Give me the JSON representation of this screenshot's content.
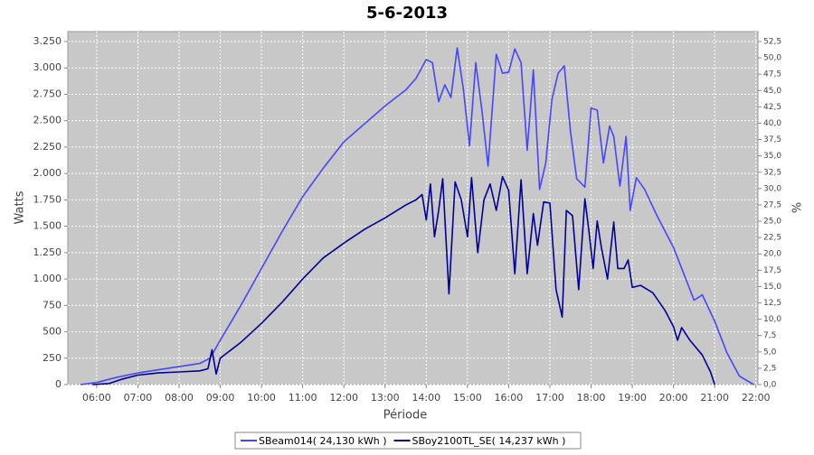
{
  "chart_data": {
    "type": "line",
    "title": "5-6-2013",
    "x_label": "Période",
    "y_label": "Watts",
    "y2_label": "%",
    "xlim": [
      5.3,
      22.05
    ],
    "xticks": [
      {
        "value": 6,
        "label": "06:00"
      },
      {
        "value": 7,
        "label": "07:00"
      },
      {
        "value": 8,
        "label": "08:00"
      },
      {
        "value": 9,
        "label": "09:00"
      },
      {
        "value": 10,
        "label": "10:00"
      },
      {
        "value": 11,
        "label": "11:00"
      },
      {
        "value": 12,
        "label": "12:00"
      },
      {
        "value": 13,
        "label": "13:00"
      },
      {
        "value": 14,
        "label": "14:00"
      },
      {
        "value": 15,
        "label": "15:00"
      },
      {
        "value": 16,
        "label": "16:00"
      },
      {
        "value": 17,
        "label": "17:00"
      },
      {
        "value": 18,
        "label": "18:00"
      },
      {
        "value": 19,
        "label": "19:00"
      },
      {
        "value": 20,
        "label": "20:00"
      },
      {
        "value": 21,
        "label": "21:00"
      },
      {
        "value": 22,
        "label": "22:00"
      }
    ],
    "ylim": [
      0,
      3344
    ],
    "yticks": [
      0,
      250,
      500,
      750,
      {
        "value": 1000,
        "label": "1.000"
      },
      {
        "value": 1250,
        "label": "1.250"
      },
      {
        "value": 1500,
        "label": "1.500"
      },
      {
        "value": 1750,
        "label": "1.750"
      },
      {
        "value": 2000,
        "label": "2.000"
      },
      {
        "value": 2250,
        "label": "2.250"
      },
      {
        "value": 2500,
        "label": "2.500"
      },
      {
        "value": 2750,
        "label": "2.750"
      },
      {
        "value": 3000,
        "label": "3.000"
      },
      {
        "value": 3250,
        "label": "3.250"
      }
    ],
    "y2lim": [
      0,
      54.02
    ],
    "y2ticks": [
      {
        "value": 0,
        "label": "0,0"
      },
      {
        "value": 2.5,
        "label": "2,5"
      },
      {
        "value": 5,
        "label": "5,0"
      },
      {
        "value": 7.5,
        "label": "7,5"
      },
      {
        "value": 10,
        "label": "10,0"
      },
      {
        "value": 12.5,
        "label": "12,5"
      },
      {
        "value": 15,
        "label": "15,0"
      },
      {
        "value": 17.5,
        "label": "17,5"
      },
      {
        "value": 20,
        "label": "20,0"
      },
      {
        "value": 22.5,
        "label": "22,5"
      },
      {
        "value": 25,
        "label": "25,0"
      },
      {
        "value": 27.5,
        "label": "27,5"
      },
      {
        "value": 30,
        "label": "30,0"
      },
      {
        "value": 32.5,
        "label": "32,5"
      },
      {
        "value": 35,
        "label": "35,0"
      },
      {
        "value": 37.5,
        "label": "37,5"
      },
      {
        "value": 40,
        "label": "40,0"
      },
      {
        "value": 42.5,
        "label": "42,5"
      },
      {
        "value": 45,
        "label": "45,0"
      },
      {
        "value": 47.5,
        "label": "47,5"
      },
      {
        "value": 50,
        "label": "50,0"
      },
      {
        "value": 52.5,
        "label": "52,5"
      }
    ],
    "grid": true,
    "series": [
      {
        "name": "SBeam014( 24,130 kWh )",
        "color": "#4646ff",
        "x": [
          5.6,
          6.0,
          6.5,
          7.0,
          7.5,
          8.0,
          8.5,
          8.75,
          9.0,
          9.5,
          10.0,
          10.5,
          11.0,
          11.5,
          12.0,
          12.5,
          13.0,
          13.5,
          13.75,
          14.0,
          14.15,
          14.3,
          14.45,
          14.6,
          14.75,
          14.9,
          15.05,
          15.2,
          15.35,
          15.5,
          15.7,
          15.85,
          16.0,
          16.15,
          16.3,
          16.45,
          16.6,
          16.75,
          16.9,
          17.05,
          17.2,
          17.35,
          17.5,
          17.65,
          17.85,
          18.0,
          18.15,
          18.3,
          18.45,
          18.55,
          18.7,
          18.85,
          18.95,
          19.1,
          19.3,
          19.6,
          20.0,
          20.3,
          20.5,
          20.7,
          21.0,
          21.3,
          21.6,
          21.95
        ],
        "values": [
          0,
          20,
          70,
          110,
          140,
          170,
          200,
          250,
          420,
          750,
          1100,
          1450,
          1780,
          2050,
          2300,
          2470,
          2640,
          2790,
          2900,
          3080,
          3050,
          2680,
          2840,
          2720,
          3190,
          2800,
          2260,
          3050,
          2600,
          2070,
          3130,
          2950,
          2960,
          3180,
          3050,
          2220,
          2980,
          1850,
          2100,
          2700,
          2950,
          3020,
          2400,
          1950,
          1870,
          2620,
          2600,
          2100,
          2450,
          2350,
          1880,
          2350,
          1650,
          1960,
          1850,
          1600,
          1300,
          1000,
          800,
          850,
          600,
          300,
          80,
          0
        ]
      },
      {
        "name": "SBoy2100TL_SE( 14,237 kWh )",
        "color": "#000099",
        "x": [
          5.9,
          6.3,
          6.6,
          7.0,
          7.5,
          8.0,
          8.5,
          8.7,
          8.8,
          8.9,
          9.0,
          9.5,
          10.0,
          10.5,
          11.0,
          11.5,
          12.0,
          12.5,
          13.0,
          13.5,
          13.75,
          13.9,
          14.0,
          14.1,
          14.2,
          14.3,
          14.4,
          14.55,
          14.7,
          14.85,
          15.0,
          15.1,
          15.25,
          15.4,
          15.55,
          15.7,
          15.85,
          16.0,
          16.15,
          16.3,
          16.45,
          16.6,
          16.7,
          16.85,
          17.0,
          17.15,
          17.3,
          17.4,
          17.55,
          17.7,
          17.85,
          17.95,
          18.05,
          18.15,
          18.25,
          18.4,
          18.55,
          18.65,
          18.8,
          18.9,
          19.0,
          19.2,
          19.5,
          19.8,
          20.0,
          20.1,
          20.2,
          20.4,
          20.7,
          20.9,
          21.0
        ],
        "values": [
          0,
          10,
          50,
          90,
          110,
          120,
          130,
          150,
          330,
          100,
          250,
          400,
          580,
          780,
          1000,
          1200,
          1340,
          1470,
          1580,
          1700,
          1750,
          1800,
          1560,
          1900,
          1400,
          1650,
          1950,
          860,
          1920,
          1750,
          1400,
          1960,
          1250,
          1750,
          1900,
          1650,
          1970,
          1840,
          1050,
          1940,
          1050,
          1620,
          1320,
          1730,
          1720,
          900,
          640,
          1650,
          1600,
          900,
          1760,
          1450,
          1100,
          1550,
          1300,
          1000,
          1540,
          1100,
          1100,
          1180,
          920,
          940,
          870,
          700,
          550,
          420,
          540,
          420,
          280,
          120,
          0
        ]
      }
    ]
  }
}
